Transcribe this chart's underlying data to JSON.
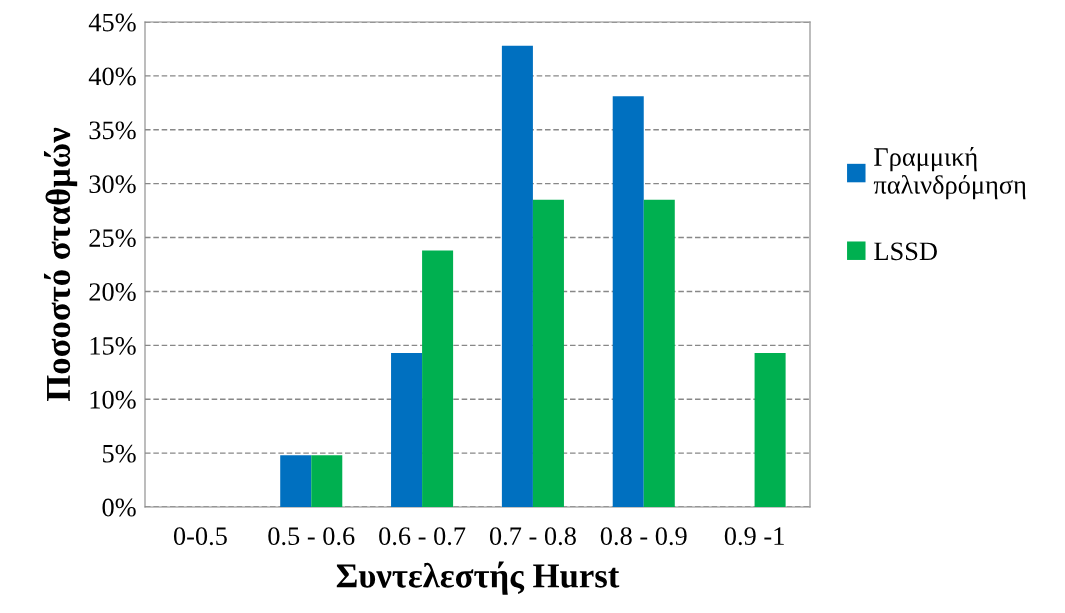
{
  "chart_data": {
    "type": "bar",
    "xlabel": "Συντελεστής Hurst",
    "ylabel": "Ποσοστό σταθμών",
    "categories": [
      "0-0.5",
      "0.5 - 0.6",
      "0.6 - 0.7",
      "0.7 - 0.8",
      "0.8 - 0.9",
      "0.9 -1"
    ],
    "series": [
      {
        "name": "Γραμμική\nπαλινδρόμηση",
        "color": "#0070c0",
        "values": [
          0,
          4.8,
          14.3,
          42.8,
          38.1,
          0
        ]
      },
      {
        "name": "LSSD",
        "color": "#00b050",
        "values": [
          0,
          4.8,
          23.8,
          28.5,
          28.5,
          14.3
        ]
      }
    ],
    "ylim": [
      0,
      45
    ],
    "yticks": [
      {
        "value": 0,
        "label": "0%"
      },
      {
        "value": 5,
        "label": "5%"
      },
      {
        "value": 10,
        "label": "10%"
      },
      {
        "value": 15,
        "label": "15%"
      },
      {
        "value": 20,
        "label": "20%"
      },
      {
        "value": 25,
        "label": "25%"
      },
      {
        "value": 30,
        "label": "30%"
      },
      {
        "value": 35,
        "label": "35%"
      },
      {
        "value": 40,
        "label": "40%"
      },
      {
        "value": 45,
        "label": "45%"
      }
    ],
    "grid": "y",
    "legend": "right"
  }
}
